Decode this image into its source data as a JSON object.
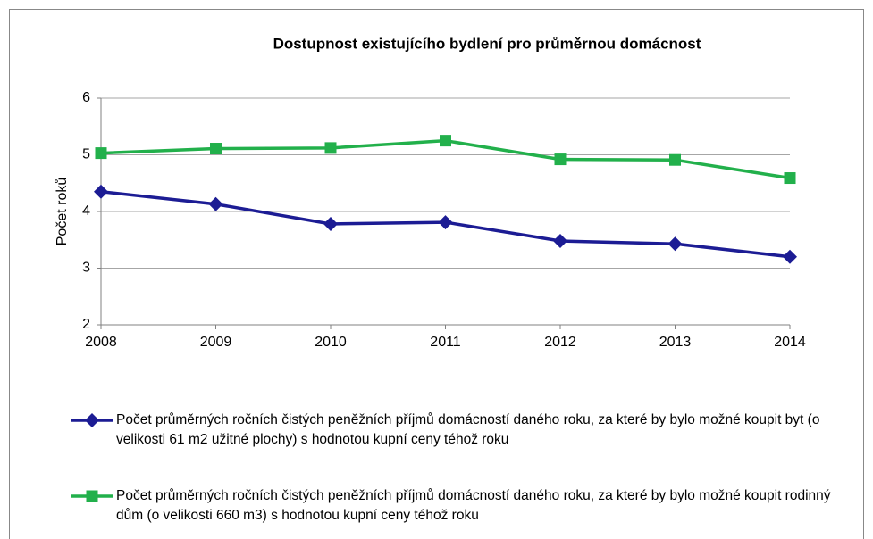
{
  "chart_data": {
    "type": "line",
    "title": "Dostupnost existujícího bydlení pro průměrnou domácnost",
    "y_label": "Počet roků",
    "x": [
      2008,
      2009,
      2010,
      2011,
      2012,
      2013,
      2014
    ],
    "xlim": [
      2008,
      2014
    ],
    "xticks": [
      2008,
      2009,
      2010,
      2011,
      2012,
      2013,
      2014
    ],
    "ylim": [
      2,
      6
    ],
    "yticks": [
      2,
      3,
      4,
      5,
      6
    ],
    "grid": true,
    "legend": "bottom",
    "series": [
      {
        "name": "Počet průměrných ročních čistých peněžních příjmů domácností daného roku, za které by bylo možné koupit byt (o velikosti 61 m2 užitné plochy) s hodnotou kupní ceny téhož roku",
        "color": "#1c1c94",
        "marker": "diamond",
        "values": [
          4.35,
          4.13,
          3.78,
          3.81,
          3.48,
          3.43,
          3.2
        ]
      },
      {
        "name": "Počet průměrných ročních čistých peněžních příjmů domácností daného roku, za které by bylo možné koupit rodinný dům (o velikosti 660 m3) s hodnotou kupní ceny téhož roku",
        "color": "#22b04b",
        "marker": "square",
        "values": [
          5.03,
          5.11,
          5.12,
          5.25,
          4.92,
          4.91,
          4.59
        ]
      }
    ]
  }
}
